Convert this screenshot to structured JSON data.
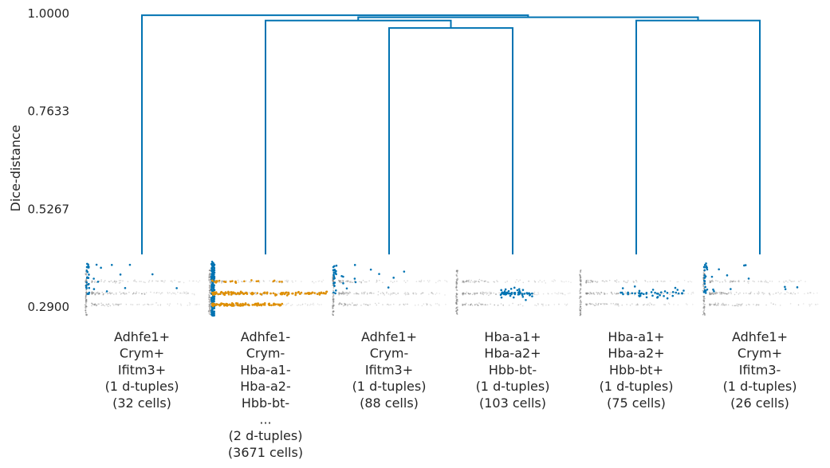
{
  "chart_data": {
    "type": "dendrogram",
    "title": "",
    "ylabel": "Dice-distance",
    "xlabel": "",
    "ylim": [
      0.29,
      1.0
    ],
    "yticks": [
      {
        "value": 1.0,
        "label": "1.0000"
      },
      {
        "value": 0.7633,
        "label": "0.7633"
      },
      {
        "value": 0.5267,
        "label": "0.5267"
      },
      {
        "value": 0.29,
        "label": "0.2900"
      }
    ],
    "colors": {
      "link": "#0173b2",
      "highlight": "#0173b2",
      "secondary": "#de8f05",
      "background_points": "#7f7f7f"
    },
    "leaves": [
      {
        "lines": [
          "Adhfe1+",
          "Crym+",
          "Ifitm3+",
          "(1 d-tuples)",
          "(32 cells)"
        ],
        "cells": 32
      },
      {
        "lines": [
          "Adhfe1-",
          "Crym-",
          "Hba-a1-",
          "Hba-a2-",
          "Hbb-bt-",
          "...",
          "(2 d-tuples)",
          "(3671 cells)"
        ],
        "cells": 3671
      },
      {
        "lines": [
          "Adhfe1+",
          "Crym-",
          "Ifitm3+",
          "(1 d-tuples)",
          "(88 cells)"
        ],
        "cells": 88
      },
      {
        "lines": [
          "Hba-a1+",
          "Hba-a2+",
          "Hbb-bt-",
          "(1 d-tuples)",
          "(103 cells)"
        ],
        "cells": 103
      },
      {
        "lines": [
          "Hba-a1+",
          "Hba-a2+",
          "Hbb-bt+",
          "(1 d-tuples)",
          "(75 cells)"
        ],
        "cells": 75
      },
      {
        "lines": [
          "Adhfe1+",
          "Crym+",
          "Ifitm3-",
          "(1 d-tuples)",
          "(26 cells)"
        ],
        "cells": 26
      }
    ],
    "merges": [
      {
        "left": 2,
        "right": 3,
        "height": 0.965
      },
      {
        "left": 1,
        "right": "m0",
        "height": 0.983
      },
      {
        "left": 4,
        "right": 5,
        "height": 0.983
      },
      {
        "left": "m1",
        "right": "m2",
        "height": 0.991
      },
      {
        "left": 0,
        "right": "m3",
        "height": 0.996
      }
    ],
    "leaf_link_floor": 0.417
  }
}
